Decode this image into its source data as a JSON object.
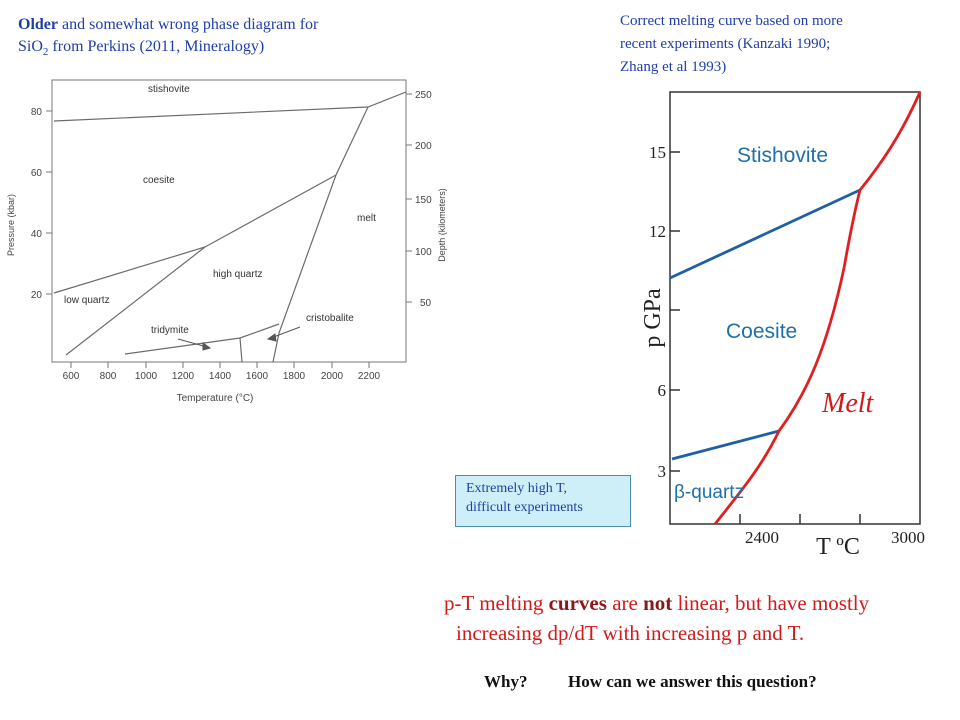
{
  "left_caption": {
    "bold": "Older",
    "text1": " and somewhat wrong phase diagram for",
    "line2_a": "SiO",
    "line2_sub": "2",
    "line2_b": " from Perkins (2011, Mineralogy)"
  },
  "right_caption": {
    "line1": "Correct melting curve based on more",
    "line2": "recent experiments (Kanzaki 1990;",
    "line3": "Zhang et al 1993)"
  },
  "note_box": {
    "line1": "Extremely high T,",
    "line2": "difficult experiments"
  },
  "main_statement": {
    "a": "p-T melting ",
    "b": "curves",
    "c": " are ",
    "d": "not",
    "e": " linear, but have mostly",
    "line2": "increasing dp/dT with increasing p and T."
  },
  "questions": {
    "why": "Why?",
    "how": "How can we answer this question?"
  },
  "left_diagram": {
    "y_axis_label": "Pressure (kbar)",
    "y_ticks": [
      "80",
      "60",
      "40",
      "20"
    ],
    "right_axis_label": "Depth (kilometers)",
    "right_ticks": [
      "250",
      "200",
      "150",
      "100",
      "50"
    ],
    "x_axis_label": "Temperature (°C)",
    "x_ticks": [
      "600",
      "800",
      "1000",
      "1200",
      "1400",
      "1600",
      "1800",
      "2000",
      "2200"
    ],
    "fields": {
      "stishovite": "stishovite",
      "coesite": "coesite",
      "melt": "melt",
      "high_quartz": "high quartz",
      "low_quartz": "low quartz",
      "cristobalite": "cristobalite",
      "tridymite": "tridymite"
    },
    "line_color": "#6b6b6b"
  },
  "right_diagram": {
    "y_axis_label": "p GPa",
    "y_ticks": [
      "15",
      "12",
      "6",
      "3"
    ],
    "x_axis_label": "T ºC",
    "x_ticks": [
      "2400",
      "3000"
    ],
    "fields": {
      "stishovite": "Stishovite",
      "coesite": "Coesite",
      "melt": "Melt",
      "beta_quartz": "β-quartz"
    },
    "melt_curve_color": "#e02020",
    "boundary_color": "#1f5fa6",
    "label_color": "#1f6fa8"
  }
}
